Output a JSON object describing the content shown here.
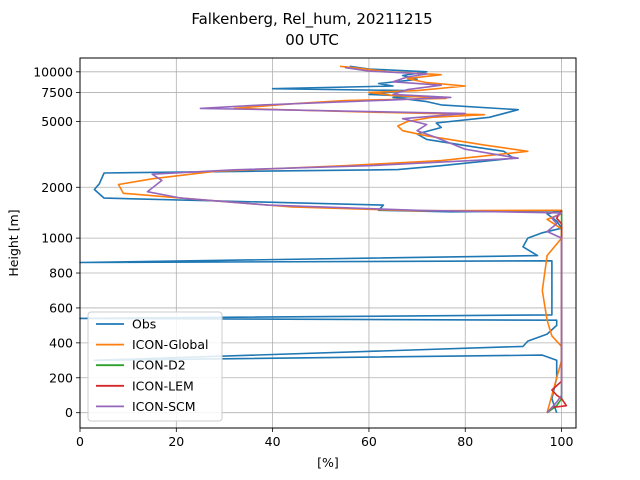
{
  "chart_data": {
    "type": "line",
    "title": "Falkenberg, Rel_hum, 20211215",
    "subtitle": "00 UTC",
    "xlabel": "[%]",
    "ylabel": "Height [m]",
    "xlim": [
      0,
      103
    ],
    "x_ticks": [
      0,
      20,
      40,
      60,
      80,
      100
    ],
    "y_ticks": [
      0,
      200,
      400,
      600,
      800,
      1000,
      2000,
      5000,
      7500,
      10000
    ],
    "y_scale": "piecewise: linear to 1000 m, logarithmic above",
    "grid": true,
    "legend_position": "lower-left",
    "series": [
      {
        "name": "Obs",
        "color": "#1f77b4",
        "points": [
          [
            99,
            0
          ],
          [
            98,
            80
          ],
          [
            99,
            200
          ],
          [
            99,
            300
          ],
          [
            96,
            330
          ],
          [
            3,
            300
          ],
          [
            92,
            380
          ],
          [
            93,
            410
          ],
          [
            97,
            450
          ],
          [
            99,
            500
          ],
          [
            99,
            530
          ],
          [
            0,
            540
          ],
          [
            98,
            560
          ],
          [
            98,
            700
          ],
          [
            98,
            870
          ],
          [
            0,
            860
          ],
          [
            95,
            900
          ],
          [
            92,
            950
          ],
          [
            93,
            1000
          ],
          [
            96,
            1060
          ],
          [
            100,
            1130
          ],
          [
            99,
            1250
          ],
          [
            97,
            1380
          ],
          [
            100,
            1440
          ],
          [
            77,
            1420
          ],
          [
            62,
            1450
          ],
          [
            63,
            1560
          ],
          [
            5,
            1720
          ],
          [
            3,
            1940
          ],
          [
            4,
            2100
          ],
          [
            5,
            2440
          ],
          [
            35,
            2500
          ],
          [
            66,
            2560
          ],
          [
            75,
            2700
          ],
          [
            90,
            3000
          ],
          [
            88,
            3300
          ],
          [
            82,
            3500
          ],
          [
            72,
            3900
          ],
          [
            70,
            4200
          ],
          [
            75,
            4600
          ],
          [
            74,
            4900
          ],
          [
            85,
            5300
          ],
          [
            91,
            5900
          ],
          [
            75,
            6300
          ],
          [
            72,
            6600
          ],
          [
            65,
            7000
          ],
          [
            70,
            7100
          ],
          [
            60,
            7300
          ],
          [
            68,
            7700
          ],
          [
            40,
            7900
          ],
          [
            65,
            8200
          ],
          [
            62,
            8500
          ],
          [
            70,
            9000
          ],
          [
            67,
            9500
          ],
          [
            72,
            10000
          ],
          [
            60,
            10400
          ],
          [
            56,
            10800
          ]
        ]
      },
      {
        "name": "ICON-Global",
        "color": "#ff7f0e",
        "points": [
          [
            97,
            0
          ],
          [
            98,
            100
          ],
          [
            99,
            200
          ],
          [
            100,
            300
          ],
          [
            100,
            380
          ],
          [
            98,
            440
          ],
          [
            97,
            530
          ],
          [
            96,
            700
          ],
          [
            97,
            900
          ],
          [
            100,
            1000
          ],
          [
            100,
            1120
          ],
          [
            97,
            1280
          ],
          [
            100,
            1380
          ],
          [
            100,
            1450
          ],
          [
            70,
            1440
          ],
          [
            44,
            1520
          ],
          [
            21,
            1720
          ],
          [
            9,
            1840
          ],
          [
            8,
            2080
          ],
          [
            15,
            2250
          ],
          [
            28,
            2500
          ],
          [
            55,
            2700
          ],
          [
            75,
            2900
          ],
          [
            93,
            3300
          ],
          [
            84,
            3600
          ],
          [
            72,
            4100
          ],
          [
            67,
            4400
          ],
          [
            66,
            4700
          ],
          [
            68,
            5000
          ],
          [
            73,
            5300
          ],
          [
            84,
            5500
          ],
          [
            60,
            5700
          ],
          [
            32,
            6000
          ],
          [
            44,
            6400
          ],
          [
            55,
            6700
          ],
          [
            76,
            6900
          ],
          [
            65,
            7200
          ],
          [
            60,
            7500
          ],
          [
            70,
            7700
          ],
          [
            80,
            8200
          ],
          [
            72,
            8600
          ],
          [
            68,
            9100
          ],
          [
            75,
            9600
          ],
          [
            64,
            10000
          ],
          [
            58,
            10500
          ],
          [
            54,
            10800
          ]
        ]
      },
      {
        "name": "ICON-D2",
        "color": "#2ca02c",
        "points": [
          [
            97,
            0
          ],
          [
            99,
            40
          ],
          [
            100,
            80
          ],
          [
            100,
            200
          ],
          [
            100,
            400
          ],
          [
            100,
            800
          ],
          [
            100,
            1000
          ],
          [
            100,
            1380
          ],
          [
            100,
            1450
          ]
        ]
      },
      {
        "name": "ICON-LEM",
        "color": "#d62728",
        "points": [
          [
            97,
            0
          ],
          [
            98,
            30
          ],
          [
            101,
            40
          ],
          [
            100,
            80
          ],
          [
            99,
            100
          ],
          [
            98,
            130
          ],
          [
            100,
            180
          ],
          [
            100,
            400
          ],
          [
            100,
            800
          ],
          [
            100,
            1000
          ],
          [
            100,
            1200
          ],
          [
            99,
            1300
          ],
          [
            100,
            1450
          ]
        ]
      },
      {
        "name": "ICON-SCM",
        "color": "#9467bd",
        "points": [
          [
            97,
            0
          ],
          [
            99,
            60
          ],
          [
            100,
            100
          ],
          [
            100,
            400
          ],
          [
            100,
            800
          ],
          [
            100,
            1000
          ],
          [
            97,
            1080
          ],
          [
            99,
            1200
          ],
          [
            98,
            1300
          ],
          [
            100,
            1400
          ],
          [
            70,
            1450
          ],
          [
            39,
            1560
          ],
          [
            21,
            1720
          ],
          [
            14,
            1880
          ],
          [
            17,
            2200
          ],
          [
            15,
            2400
          ],
          [
            32,
            2550
          ],
          [
            60,
            2700
          ],
          [
            91,
            3000
          ],
          [
            80,
            3400
          ],
          [
            74,
            4000
          ],
          [
            70,
            4400
          ],
          [
            72,
            4800
          ],
          [
            67,
            5200
          ],
          [
            80,
            5600
          ],
          [
            40,
            5900
          ],
          [
            25,
            6000
          ],
          [
            38,
            6300
          ],
          [
            62,
            6700
          ],
          [
            77,
            7000
          ],
          [
            65,
            7300
          ],
          [
            68,
            7800
          ],
          [
            75,
            8300
          ],
          [
            65,
            8700
          ],
          [
            68,
            9300
          ],
          [
            72,
            9700
          ],
          [
            60,
            10100
          ],
          [
            55,
            10600
          ]
        ]
      }
    ]
  }
}
